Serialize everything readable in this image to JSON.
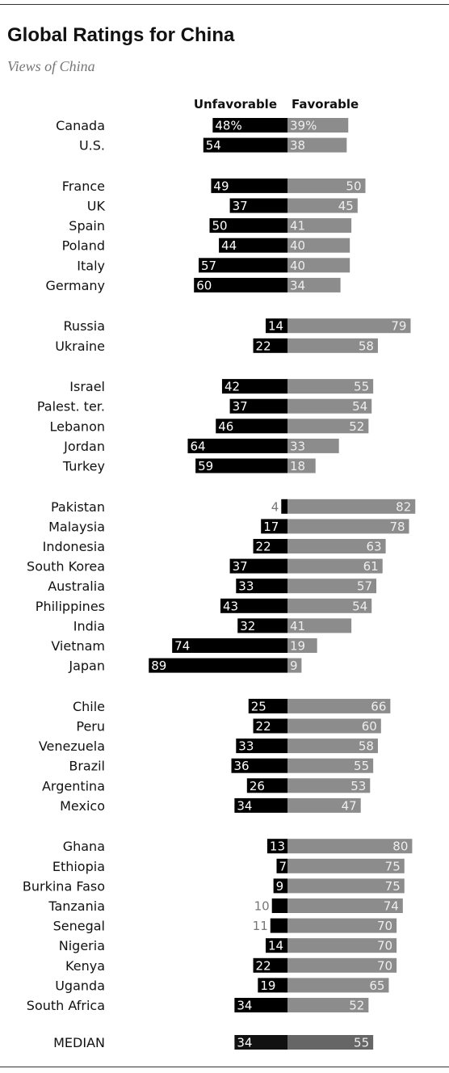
{
  "header": {
    "title": "Global Ratings for China",
    "subtitle": "Views of China"
  },
  "chart_data": {
    "type": "bar",
    "orientation": "horizontal-diverging",
    "title": "Global Ratings for China",
    "subtitle": "Views of China",
    "legend": [
      "Unfavorable",
      "Favorable"
    ],
    "series": [
      {
        "name": "Unfavorable",
        "color": "#000000"
      },
      {
        "name": "Favorable",
        "color": "#8c8c8c"
      }
    ],
    "groups": [
      {
        "rows": [
          {
            "country": "Canada",
            "unfavorable": 48,
            "favorable": 39,
            "unf_label": "48%",
            "fav_label": "39%"
          },
          {
            "country": "U.S.",
            "unfavorable": 54,
            "favorable": 38,
            "unf_label": "54",
            "fav_label": "38"
          }
        ]
      },
      {
        "rows": [
          {
            "country": "France",
            "unfavorable": 49,
            "favorable": 50,
            "unf_label": "49",
            "fav_label": "50"
          },
          {
            "country": "UK",
            "unfavorable": 37,
            "favorable": 45,
            "unf_label": "37",
            "fav_label": "45"
          },
          {
            "country": "Spain",
            "unfavorable": 50,
            "favorable": 41,
            "unf_label": "50",
            "fav_label": "41"
          },
          {
            "country": "Poland",
            "unfavorable": 44,
            "favorable": 40,
            "unf_label": "44",
            "fav_label": "40"
          },
          {
            "country": "Italy",
            "unfavorable": 57,
            "favorable": 40,
            "unf_label": "57",
            "fav_label": "40"
          },
          {
            "country": "Germany",
            "unfavorable": 60,
            "favorable": 34,
            "unf_label": "60",
            "fav_label": "34"
          }
        ]
      },
      {
        "rows": [
          {
            "country": "Russia",
            "unfavorable": 14,
            "favorable": 79,
            "unf_label": "14",
            "fav_label": "79"
          },
          {
            "country": "Ukraine",
            "unfavorable": 22,
            "favorable": 58,
            "unf_label": "22",
            "fav_label": "58"
          }
        ]
      },
      {
        "rows": [
          {
            "country": "Israel",
            "unfavorable": 42,
            "favorable": 55,
            "unf_label": "42",
            "fav_label": "55"
          },
          {
            "country": "Palest. ter.",
            "unfavorable": 37,
            "favorable": 54,
            "unf_label": "37",
            "fav_label": "54"
          },
          {
            "country": "Lebanon",
            "unfavorable": 46,
            "favorable": 52,
            "unf_label": "46",
            "fav_label": "52"
          },
          {
            "country": "Jordan",
            "unfavorable": 64,
            "favorable": 33,
            "unf_label": "64",
            "fav_label": "33"
          },
          {
            "country": "Turkey",
            "unfavorable": 59,
            "favorable": 18,
            "unf_label": "59",
            "fav_label": "18"
          }
        ]
      },
      {
        "rows": [
          {
            "country": "Pakistan",
            "unfavorable": 4,
            "favorable": 82,
            "unf_label": "4",
            "fav_label": "82"
          },
          {
            "country": "Malaysia",
            "unfavorable": 17,
            "favorable": 78,
            "unf_label": "17",
            "fav_label": "78"
          },
          {
            "country": "Indonesia",
            "unfavorable": 22,
            "favorable": 63,
            "unf_label": "22",
            "fav_label": "63"
          },
          {
            "country": "South Korea",
            "unfavorable": 37,
            "favorable": 61,
            "unf_label": "37",
            "fav_label": "61"
          },
          {
            "country": "Australia",
            "unfavorable": 33,
            "favorable": 57,
            "unf_label": "33",
            "fav_label": "57"
          },
          {
            "country": "Philippines",
            "unfavorable": 43,
            "favorable": 54,
            "unf_label": "43",
            "fav_label": "54"
          },
          {
            "country": "India",
            "unfavorable": 32,
            "favorable": 41,
            "unf_label": "32",
            "fav_label": "41"
          },
          {
            "country": "Vietnam",
            "unfavorable": 74,
            "favorable": 19,
            "unf_label": "74",
            "fav_label": "19"
          },
          {
            "country": "Japan",
            "unfavorable": 89,
            "favorable": 9,
            "unf_label": "89",
            "fav_label": "9"
          }
        ]
      },
      {
        "rows": [
          {
            "country": "Chile",
            "unfavorable": 25,
            "favorable": 66,
            "unf_label": "25",
            "fav_label": "66"
          },
          {
            "country": "Peru",
            "unfavorable": 22,
            "favorable": 60,
            "unf_label": "22",
            "fav_label": "60"
          },
          {
            "country": "Venezuela",
            "unfavorable": 33,
            "favorable": 58,
            "unf_label": "33",
            "fav_label": "58"
          },
          {
            "country": "Brazil",
            "unfavorable": 36,
            "favorable": 55,
            "unf_label": "36",
            "fav_label": "55"
          },
          {
            "country": "Argentina",
            "unfavorable": 26,
            "favorable": 53,
            "unf_label": "26",
            "fav_label": "53"
          },
          {
            "country": "Mexico",
            "unfavorable": 34,
            "favorable": 47,
            "unf_label": "34",
            "fav_label": "47"
          }
        ]
      },
      {
        "rows": [
          {
            "country": "Ghana",
            "unfavorable": 13,
            "favorable": 80,
            "unf_label": "13",
            "fav_label": "80"
          },
          {
            "country": "Ethiopia",
            "unfavorable": 7,
            "favorable": 75,
            "unf_label": "7",
            "fav_label": "75"
          },
          {
            "country": "Burkina Faso",
            "unfavorable": 9,
            "favorable": 75,
            "unf_label": "9",
            "fav_label": "75"
          },
          {
            "country": "Tanzania",
            "unfavorable": 10,
            "favorable": 74,
            "unf_label": "10",
            "fav_label": "74"
          },
          {
            "country": "Senegal",
            "unfavorable": 11,
            "favorable": 70,
            "unf_label": "11",
            "fav_label": "70"
          },
          {
            "country": "Nigeria",
            "unfavorable": 14,
            "favorable": 70,
            "unf_label": "14",
            "fav_label": "70"
          },
          {
            "country": "Kenya",
            "unfavorable": 22,
            "favorable": 70,
            "unf_label": "22",
            "fav_label": "70"
          },
          {
            "country": "Uganda",
            "unfavorable": 19,
            "favorable": 65,
            "unf_label": "19",
            "fav_label": "65"
          },
          {
            "country": "South Africa",
            "unfavorable": 34,
            "favorable": 52,
            "unf_label": "34",
            "fav_label": "52"
          }
        ]
      }
    ],
    "median": {
      "country": "MEDIAN",
      "unfavorable": 34,
      "favorable": 55,
      "unf_label": "34",
      "fav_label": "55"
    }
  }
}
